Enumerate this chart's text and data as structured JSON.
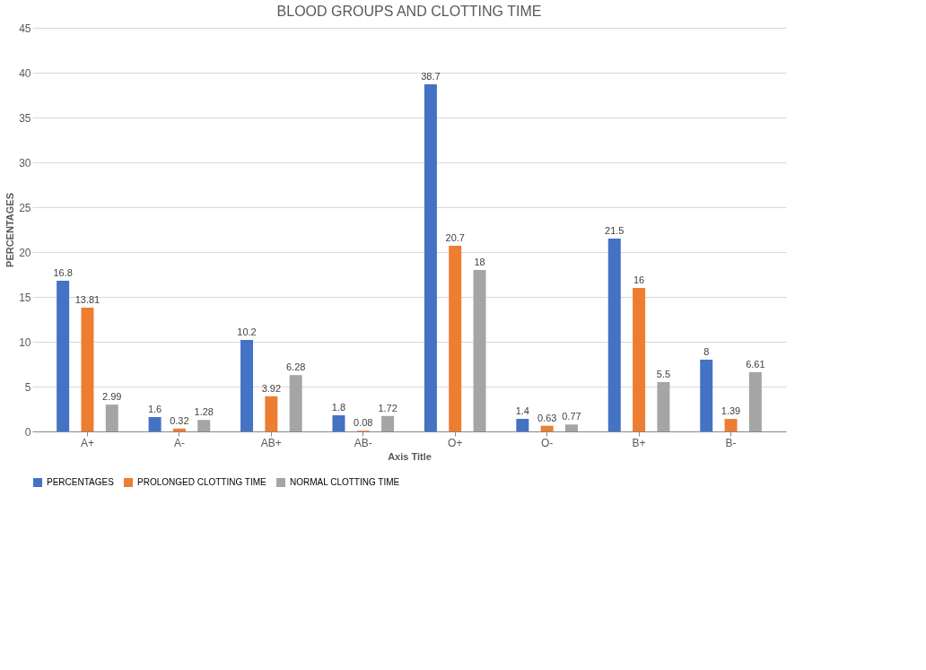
{
  "chart_data": {
    "type": "bar",
    "title": "BLOOD GROUPS AND CLOTTING  TIME",
    "xlabel": "Axis Title",
    "ylabel": "PERCENTAGES",
    "categories": [
      "A+",
      "A-",
      "AB+",
      "AB-",
      "O+",
      "O-",
      "B+",
      "B-"
    ],
    "series": [
      {
        "name": "PERCENTAGES",
        "color": "#4472c4",
        "values": [
          16.8,
          1.6,
          10.2,
          1.8,
          38.7,
          1.4,
          21.5,
          8
        ]
      },
      {
        "name": "PROLONGED CLOTTING TIME",
        "color": "#ed7d31",
        "values": [
          13.81,
          0.32,
          3.92,
          0.08,
          20.7,
          0.63,
          16,
          1.39
        ]
      },
      {
        "name": "NORMAL CLOTTING TIME",
        "color": "#a5a5a5",
        "values": [
          2.99,
          1.28,
          6.28,
          1.72,
          18,
          0.77,
          5.5,
          6.61
        ]
      }
    ],
    "ylim": [
      0,
      45
    ],
    "yticks": [
      0,
      5,
      10,
      15,
      20,
      25,
      30,
      35,
      40,
      45
    ],
    "grid": "y",
    "legend": "bottom",
    "data_labels": true
  }
}
